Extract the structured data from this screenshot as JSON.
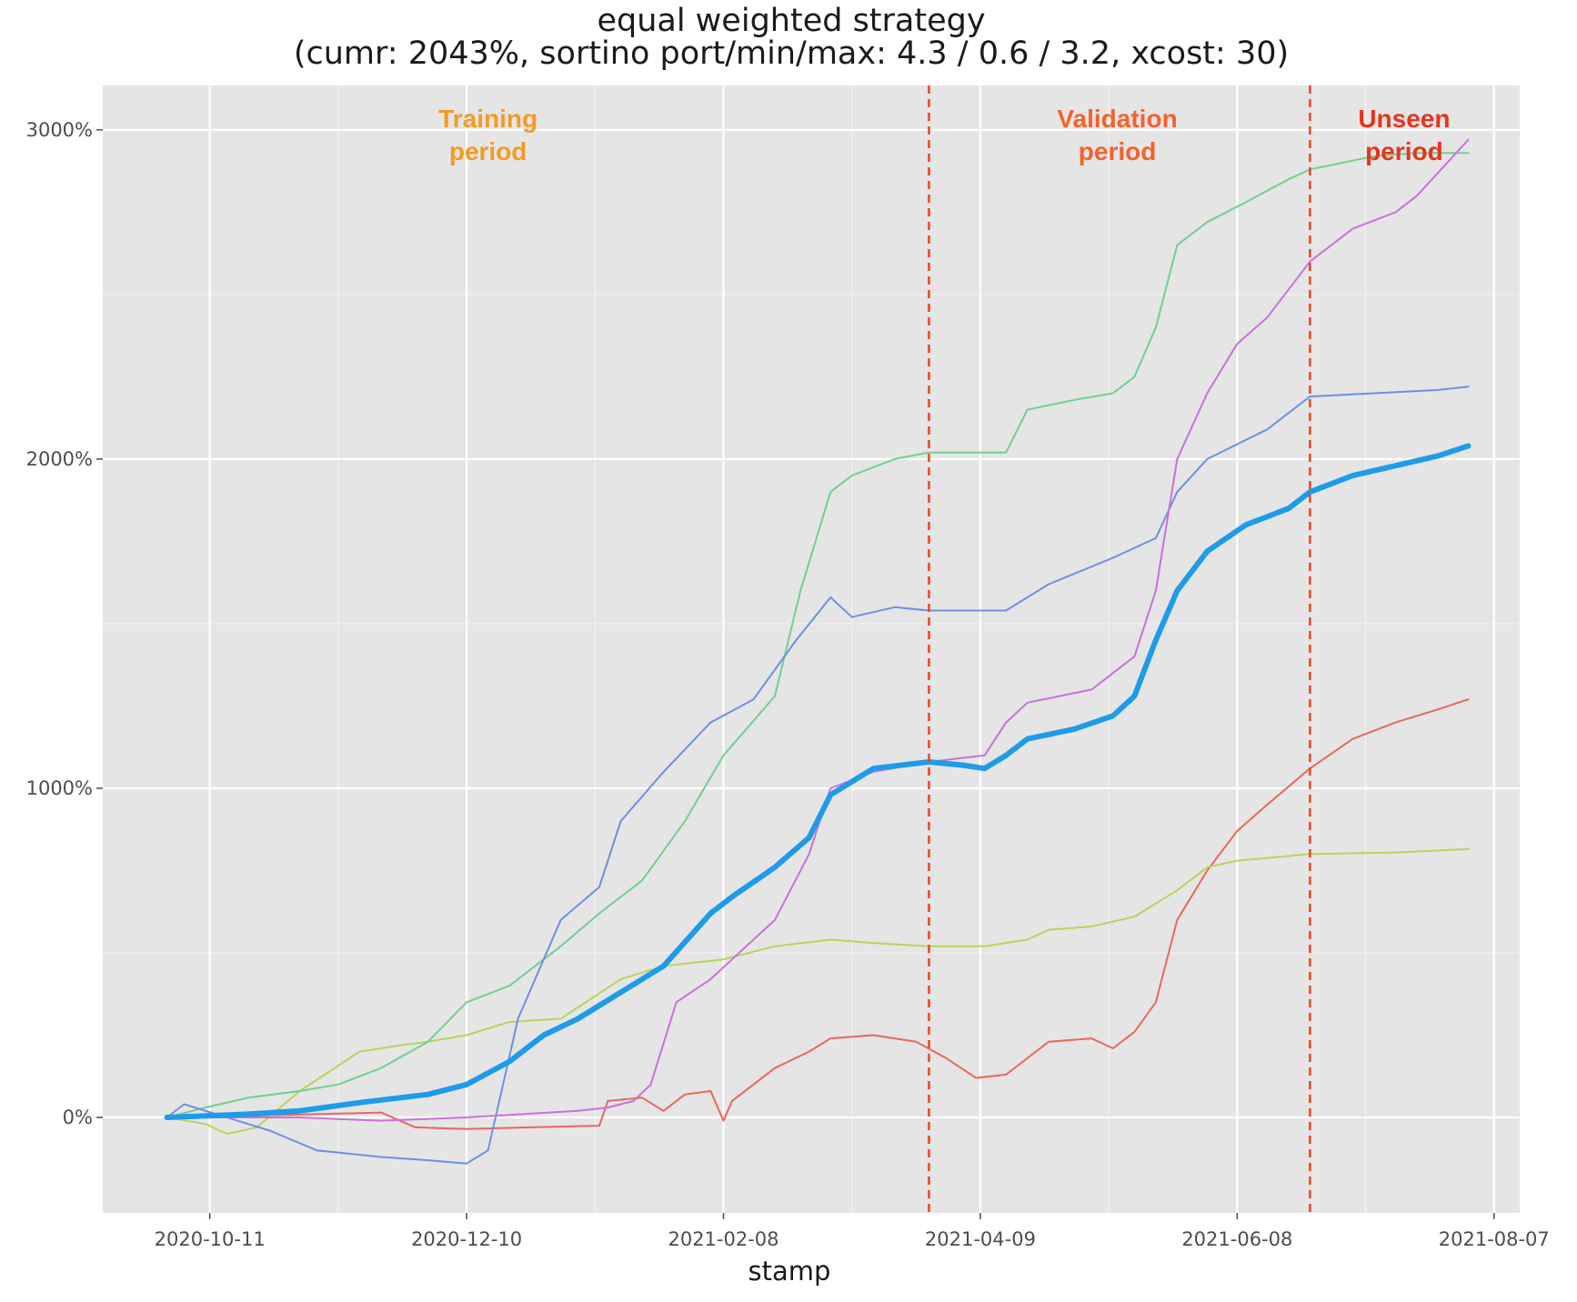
{
  "chart_data": {
    "type": "line",
    "title": "equal weighted strategy",
    "subtitle": "(cumr: 2043%, sortino port/min/max: 4.3 / 0.6 / 3.2, xcost: 30)",
    "xlabel": "stamp",
    "ylabel": "",
    "x_type": "date",
    "xlim": [
      "2020-09-16",
      "2021-08-13"
    ],
    "ylim": [
      -290,
      3135
    ],
    "x_ticks": [
      "2020-10-11",
      "2020-12-10",
      "2021-02-08",
      "2021-04-09",
      "2021-06-08",
      "2021-08-07"
    ],
    "x_tick_labels": [
      "2020-10-11",
      "2020-12-10",
      "2021-02-08",
      "2021-04-09",
      "2021-06-08",
      "2021-08-07"
    ],
    "y_ticks": [
      0,
      1000,
      2000,
      3000
    ],
    "y_tick_labels": [
      "0%",
      "1000%",
      "2000%",
      "3000%"
    ],
    "grid": true,
    "background": "#e5e5e5",
    "period_lines": {
      "dates": [
        "2021-03-28",
        "2021-06-25"
      ],
      "color": "#ee4422",
      "style": "dashed"
    },
    "period_labels": [
      {
        "lines": [
          "Training",
          "period"
        ],
        "date": "2020-12-15",
        "color": "#f59a23"
      },
      {
        "lines": [
          "Validation",
          "period"
        ],
        "date": "2021-05-11",
        "color": "#f5622d"
      },
      {
        "lines": [
          "Unseen",
          "period"
        ],
        "date": "2021-07-17",
        "color": "#e8341c"
      }
    ],
    "series": [
      {
        "color": "#e8685c",
        "width": 2,
        "points": [
          [
            "2020-10-01",
            0
          ],
          [
            "2020-10-20",
            5
          ],
          [
            "2020-11-05",
            10
          ],
          [
            "2020-11-20",
            15
          ],
          [
            "2020-11-28",
            -30
          ],
          [
            "2020-12-10",
            -35
          ],
          [
            "2020-12-25",
            -30
          ],
          [
            "2021-01-10",
            -25
          ],
          [
            "2021-01-12",
            50
          ],
          [
            "2021-01-20",
            60
          ],
          [
            "2021-01-25",
            20
          ],
          [
            "2021-01-30",
            70
          ],
          [
            "2021-02-05",
            80
          ],
          [
            "2021-02-08",
            -10
          ],
          [
            "2021-02-10",
            50
          ],
          [
            "2021-02-20",
            150
          ],
          [
            "2021-02-28",
            200
          ],
          [
            "2021-03-05",
            240
          ],
          [
            "2021-03-15",
            250
          ],
          [
            "2021-03-25",
            230
          ],
          [
            "2021-04-01",
            180
          ],
          [
            "2021-04-08",
            120
          ],
          [
            "2021-04-15",
            130
          ],
          [
            "2021-04-25",
            230
          ],
          [
            "2021-05-05",
            240
          ],
          [
            "2021-05-10",
            210
          ],
          [
            "2021-05-15",
            260
          ],
          [
            "2021-05-20",
            350
          ],
          [
            "2021-05-25",
            600
          ],
          [
            "2021-06-01",
            750
          ],
          [
            "2021-06-08",
            870
          ],
          [
            "2021-06-15",
            950
          ],
          [
            "2021-06-25",
            1060
          ],
          [
            "2021-07-05",
            1150
          ],
          [
            "2021-07-15",
            1200
          ],
          [
            "2021-07-25",
            1240
          ],
          [
            "2021-08-01",
            1270
          ]
        ]
      },
      {
        "color": "#b4d65a",
        "width": 2,
        "points": [
          [
            "2020-10-01",
            0
          ],
          [
            "2020-10-10",
            -20
          ],
          [
            "2020-10-15",
            -50
          ],
          [
            "2020-10-22",
            -30
          ],
          [
            "2020-11-01",
            80
          ],
          [
            "2020-11-15",
            200
          ],
          [
            "2020-11-25",
            220
          ],
          [
            "2020-12-01",
            230
          ],
          [
            "2020-12-10",
            250
          ],
          [
            "2020-12-20",
            290
          ],
          [
            "2021-01-01",
            300
          ],
          [
            "2021-01-15",
            420
          ],
          [
            "2021-01-25",
            460
          ],
          [
            "2021-02-08",
            480
          ],
          [
            "2021-02-20",
            520
          ],
          [
            "2021-03-05",
            540
          ],
          [
            "2021-03-15",
            530
          ],
          [
            "2021-03-28",
            520
          ],
          [
            "2021-04-10",
            520
          ],
          [
            "2021-04-20",
            540
          ],
          [
            "2021-04-25",
            570
          ],
          [
            "2021-05-05",
            580
          ],
          [
            "2021-05-15",
            610
          ],
          [
            "2021-05-25",
            690
          ],
          [
            "2021-06-01",
            760
          ],
          [
            "2021-06-08",
            780
          ],
          [
            "2021-06-25",
            800
          ],
          [
            "2021-07-15",
            805
          ],
          [
            "2021-08-01",
            815
          ]
        ]
      },
      {
        "color": "#6fd18d",
        "width": 2,
        "points": [
          [
            "2020-10-01",
            0
          ],
          [
            "2020-10-10",
            30
          ],
          [
            "2020-10-20",
            60
          ],
          [
            "2020-11-01",
            80
          ],
          [
            "2020-11-10",
            100
          ],
          [
            "2020-11-20",
            150
          ],
          [
            "2020-12-01",
            230
          ],
          [
            "2020-12-10",
            350
          ],
          [
            "2020-12-20",
            400
          ],
          [
            "2021-01-01",
            520
          ],
          [
            "2021-01-10",
            620
          ],
          [
            "2021-01-20",
            720
          ],
          [
            "2021-01-30",
            900
          ],
          [
            "2021-02-08",
            1100
          ],
          [
            "2021-02-20",
            1280
          ],
          [
            "2021-02-26",
            1600
          ],
          [
            "2021-03-05",
            1900
          ],
          [
            "2021-03-10",
            1950
          ],
          [
            "2021-03-20",
            2000
          ],
          [
            "2021-03-28",
            2020
          ],
          [
            "2021-04-15",
            2020
          ],
          [
            "2021-04-20",
            2150
          ],
          [
            "2021-05-01",
            2180
          ],
          [
            "2021-05-10",
            2200
          ],
          [
            "2021-05-15",
            2250
          ],
          [
            "2021-05-20",
            2400
          ],
          [
            "2021-05-25",
            2650
          ],
          [
            "2021-06-01",
            2720
          ],
          [
            "2021-06-10",
            2780
          ],
          [
            "2021-06-20",
            2850
          ],
          [
            "2021-06-25",
            2880
          ],
          [
            "2021-07-10",
            2920
          ],
          [
            "2021-07-20",
            2930
          ],
          [
            "2021-08-01",
            2930
          ]
        ]
      },
      {
        "color": "#6e8fe6",
        "width": 2,
        "points": [
          [
            "2020-10-01",
            0
          ],
          [
            "2020-10-05",
            40
          ],
          [
            "2020-10-15",
            0
          ],
          [
            "2020-10-25",
            -40
          ],
          [
            "2020-11-05",
            -100
          ],
          [
            "2020-11-20",
            -120
          ],
          [
            "2020-12-01",
            -130
          ],
          [
            "2020-12-10",
            -140
          ],
          [
            "2020-12-15",
            -100
          ],
          [
            "2020-12-22",
            300
          ],
          [
            "2021-01-01",
            600
          ],
          [
            "2021-01-10",
            700
          ],
          [
            "2021-01-15",
            900
          ],
          [
            "2021-01-25",
            1050
          ],
          [
            "2021-02-05",
            1200
          ],
          [
            "2021-02-15",
            1270
          ],
          [
            "2021-02-25",
            1450
          ],
          [
            "2021-03-05",
            1580
          ],
          [
            "2021-03-10",
            1520
          ],
          [
            "2021-03-20",
            1550
          ],
          [
            "2021-03-28",
            1540
          ],
          [
            "2021-04-15",
            1540
          ],
          [
            "2021-04-25",
            1620
          ],
          [
            "2021-05-10",
            1700
          ],
          [
            "2021-05-20",
            1760
          ],
          [
            "2021-05-25",
            1900
          ],
          [
            "2021-06-01",
            2000
          ],
          [
            "2021-06-15",
            2090
          ],
          [
            "2021-06-25",
            2190
          ],
          [
            "2021-07-10",
            2200
          ],
          [
            "2021-07-25",
            2210
          ],
          [
            "2021-08-01",
            2220
          ]
        ]
      },
      {
        "color": "#c971db",
        "width": 2,
        "points": [
          [
            "2020-10-01",
            0
          ],
          [
            "2020-11-01",
            0
          ],
          [
            "2020-11-20",
            -10
          ],
          [
            "2020-12-10",
            0
          ],
          [
            "2021-01-05",
            20
          ],
          [
            "2021-01-12",
            30
          ],
          [
            "2021-01-18",
            50
          ],
          [
            "2021-01-22",
            100
          ],
          [
            "2021-01-28",
            350
          ],
          [
            "2021-02-05",
            420
          ],
          [
            "2021-02-10",
            480
          ],
          [
            "2021-02-20",
            600
          ],
          [
            "2021-02-28",
            800
          ],
          [
            "2021-03-05",
            1000
          ],
          [
            "2021-03-15",
            1050
          ],
          [
            "2021-03-28",
            1080
          ],
          [
            "2021-04-10",
            1100
          ],
          [
            "2021-04-15",
            1200
          ],
          [
            "2021-04-20",
            1260
          ],
          [
            "2021-05-05",
            1300
          ],
          [
            "2021-05-15",
            1400
          ],
          [
            "2021-05-20",
            1600
          ],
          [
            "2021-05-25",
            2000
          ],
          [
            "2021-06-01",
            2200
          ],
          [
            "2021-06-08",
            2350
          ],
          [
            "2021-06-15",
            2430
          ],
          [
            "2021-06-25",
            2600
          ],
          [
            "2021-07-05",
            2700
          ],
          [
            "2021-07-15",
            2750
          ],
          [
            "2021-07-20",
            2800
          ],
          [
            "2021-08-01",
            2970
          ]
        ]
      },
      {
        "color": "#1e9be9",
        "width": 6,
        "points": [
          [
            "2020-10-01",
            0
          ],
          [
            "2020-10-20",
            10
          ],
          [
            "2020-11-01",
            20
          ],
          [
            "2020-11-15",
            45
          ],
          [
            "2020-12-01",
            70
          ],
          [
            "2020-12-10",
            100
          ],
          [
            "2020-12-20",
            170
          ],
          [
            "2020-12-28",
            250
          ],
          [
            "2021-01-05",
            300
          ],
          [
            "2021-01-15",
            380
          ],
          [
            "2021-01-25",
            460
          ],
          [
            "2021-02-05",
            620
          ],
          [
            "2021-02-10",
            670
          ],
          [
            "2021-02-20",
            760
          ],
          [
            "2021-02-28",
            850
          ],
          [
            "2021-03-05",
            980
          ],
          [
            "2021-03-15",
            1060
          ],
          [
            "2021-03-28",
            1080
          ],
          [
            "2021-04-05",
            1070
          ],
          [
            "2021-04-10",
            1060
          ],
          [
            "2021-04-15",
            1100
          ],
          [
            "2021-04-20",
            1150
          ],
          [
            "2021-05-01",
            1180
          ],
          [
            "2021-05-10",
            1220
          ],
          [
            "2021-05-15",
            1280
          ],
          [
            "2021-05-20",
            1450
          ],
          [
            "2021-05-25",
            1600
          ],
          [
            "2021-06-01",
            1720
          ],
          [
            "2021-06-10",
            1800
          ],
          [
            "2021-06-20",
            1850
          ],
          [
            "2021-06-25",
            1900
          ],
          [
            "2021-07-05",
            1950
          ],
          [
            "2021-07-15",
            1980
          ],
          [
            "2021-07-25",
            2010
          ],
          [
            "2021-08-01",
            2040
          ]
        ]
      }
    ]
  }
}
